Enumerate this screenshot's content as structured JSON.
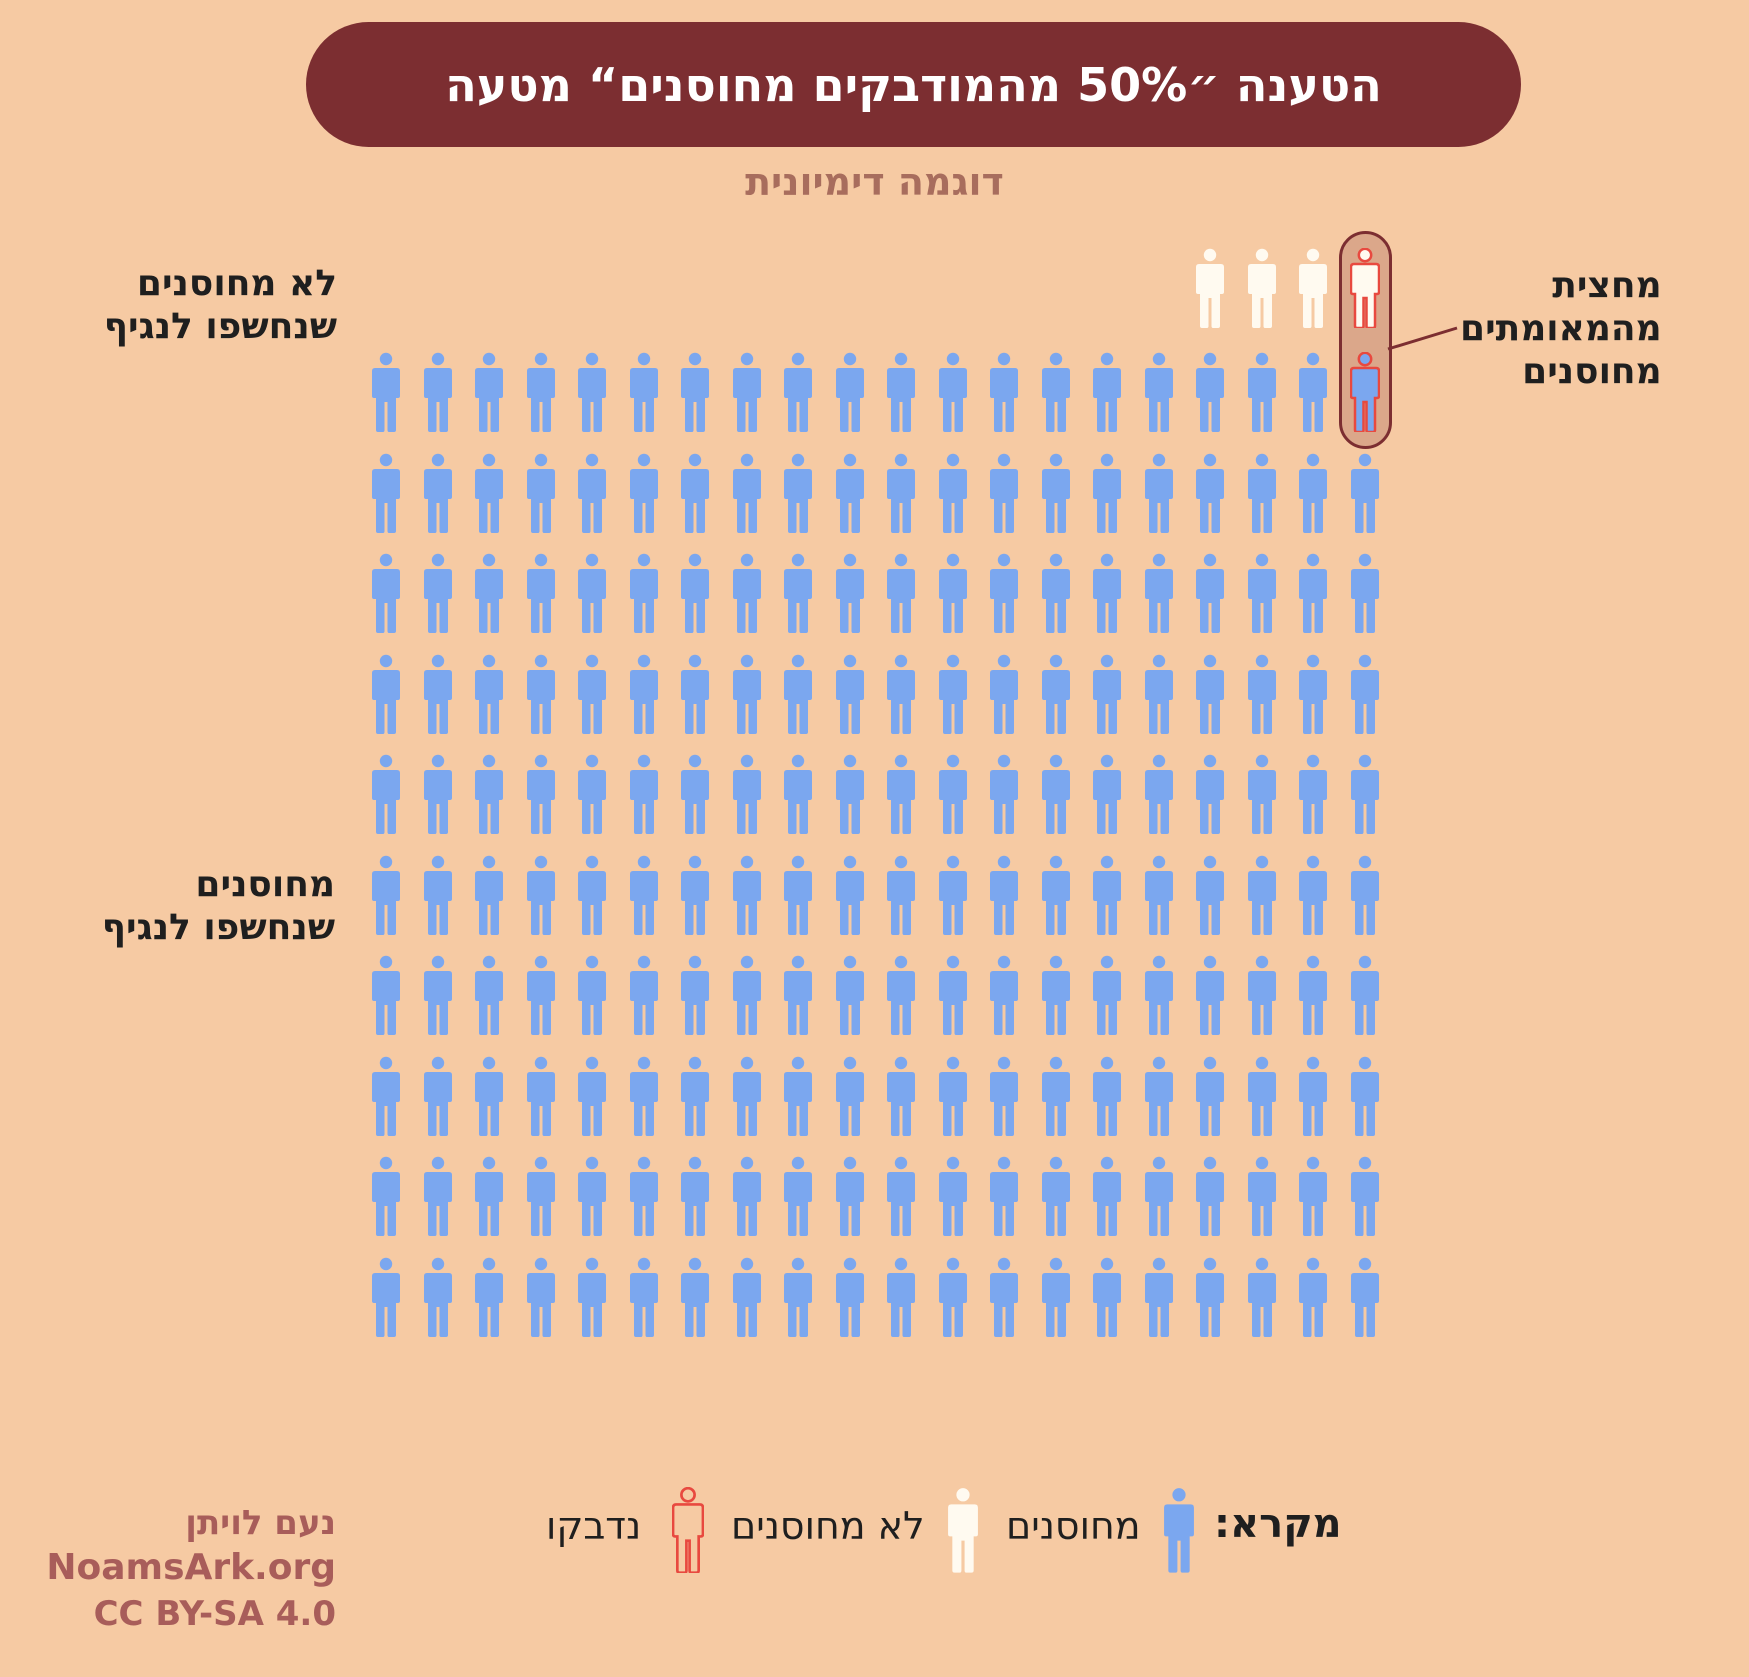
{
  "header": {
    "title": "הטענה ״50% מהמודבקים מחוסנים“ מטעה",
    "subtitle": "דוגמה דימיונית"
  },
  "labels": {
    "unvaccinated_exposed": [
      "לא מחוסנים",
      "שנחשפו לנגיף"
    ],
    "vaccinated_exposed": [
      "מחוסנים",
      "שנחשפו לנגיף"
    ],
    "half_of_confirmed": [
      "מחצית",
      "מהמאומתים",
      "מחוסנים"
    ]
  },
  "legend": {
    "title": "מקרא:",
    "items": [
      {
        "label": "מחוסנים",
        "color": "#7ba7ef"
      },
      {
        "label": "לא מחוסנים",
        "color": "#fffaf0"
      },
      {
        "label": "נדבקו",
        "color": "#e8493f"
      }
    ]
  },
  "credits": {
    "author": "נעם לויתן",
    "site": "NoamsArk.org",
    "license": "CC BY-SA 4.0"
  },
  "grid": {
    "vaccinated_rows": 10,
    "vaccinated_cols": 20,
    "vaccinated_total": 200,
    "vaccinated_infected": 1,
    "unvaccinated_total": 4,
    "unvaccinated_infected": 1
  },
  "colors": {
    "background": "#f6caa3",
    "title_bar": "#7c2e31",
    "vaccinated": "#7ba7ef",
    "unvaccinated": "#fffaf0",
    "infected_outline": "#e8493f"
  }
}
